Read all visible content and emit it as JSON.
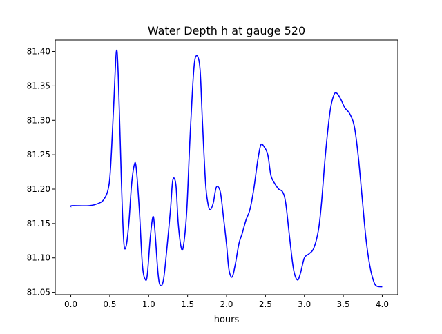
{
  "chart_data": {
    "type": "line",
    "title": "Water Depth h at gauge 520",
    "xlabel": "hours",
    "ylabel": "",
    "xlim": [
      -0.2,
      4.2
    ],
    "ylim": [
      81.0466,
      81.4166
    ],
    "xticks": [
      "0.0",
      "0.5",
      "1.0",
      "1.5",
      "2.0",
      "2.5",
      "3.0",
      "3.5",
      "4.0"
    ],
    "yticks": [
      "81.05",
      "81.10",
      "81.15",
      "81.20",
      "81.25",
      "81.30",
      "81.35",
      "81.40"
    ],
    "grid": false,
    "series": [
      {
        "name": "h",
        "color": "#0000ff",
        "x": [
          0,
          0.02,
          0.24,
          0.37,
          0.43,
          0.48,
          0.51,
          0.55,
          0.585,
          0.61,
          0.65,
          0.68,
          0.71,
          0.745,
          0.78,
          0.815,
          0.84,
          0.88,
          0.92,
          0.96,
          0.985,
          1.02,
          1.055,
          1.08,
          1.12,
          1.15,
          1.19,
          1.23,
          1.28,
          1.31,
          1.35,
          1.38,
          1.42,
          1.45,
          1.49,
          1.53,
          1.58,
          1.62,
          1.66,
          1.69,
          1.73,
          1.76,
          1.79,
          1.83,
          1.87,
          1.92,
          1.96,
          2.0,
          2.03,
          2.07,
          2.11,
          2.16,
          2.2,
          2.25,
          2.3,
          2.35,
          2.4,
          2.44,
          2.48,
          2.53,
          2.57,
          2.62,
          2.67,
          2.72,
          2.76,
          2.81,
          2.86,
          2.91,
          2.95,
          3.0,
          3.06,
          3.12,
          3.18,
          3.22,
          3.27,
          3.33,
          3.38,
          3.42,
          3.47,
          3.52,
          3.58,
          3.64,
          3.69,
          3.74,
          3.79,
          3.84,
          3.89,
          3.93,
          4.0
        ],
        "y": [
          81.174,
          81.176,
          81.176,
          81.18,
          81.186,
          81.2,
          81.23,
          81.32,
          81.4,
          81.363,
          81.21,
          81.124,
          81.117,
          81.15,
          81.206,
          81.235,
          81.231,
          81.17,
          81.089,
          81.068,
          81.078,
          81.129,
          81.16,
          81.14,
          81.078,
          81.06,
          81.068,
          81.109,
          81.17,
          81.213,
          81.206,
          81.15,
          81.114,
          81.12,
          81.17,
          81.272,
          81.374,
          81.394,
          81.374,
          81.3,
          81.21,
          81.18,
          81.17,
          81.18,
          81.203,
          81.196,
          81.16,
          81.12,
          81.084,
          81.072,
          81.089,
          81.121,
          81.135,
          81.155,
          81.17,
          81.2,
          81.241,
          81.264,
          81.262,
          81.25,
          81.22,
          81.208,
          81.2,
          81.196,
          81.18,
          81.13,
          81.084,
          81.068,
          81.078,
          81.1,
          81.106,
          81.114,
          81.14,
          81.18,
          81.25,
          81.313,
          81.337,
          81.339,
          81.33,
          81.318,
          81.31,
          81.292,
          81.25,
          81.19,
          81.129,
          81.089,
          81.066,
          81.059,
          81.058
        ]
      }
    ]
  }
}
